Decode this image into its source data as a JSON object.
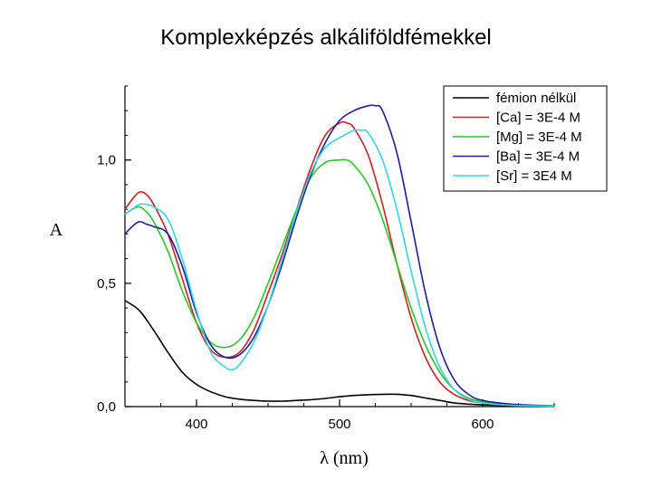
{
  "slide": {
    "title": "Komplexképzés alkáliföldfémekkel"
  },
  "chart_data": {
    "type": "line",
    "title": "",
    "xlabel": "λ (nm)",
    "ylabel": "A",
    "xlim": [
      350,
      650
    ],
    "ylim": [
      0,
      1.3
    ],
    "x_ticks": [
      400,
      500,
      600
    ],
    "x_tick_labels": [
      "400",
      "500",
      "600"
    ],
    "y_ticks": [
      0,
      0.5,
      1.0
    ],
    "y_tick_labels": [
      "0,0",
      "0,5",
      "1,0"
    ],
    "grid": false,
    "legend_position": "top-right",
    "series": [
      {
        "name": "fémion nélkül",
        "color": "#000000",
        "x": [
          350,
          360,
          370,
          380,
          390,
          400,
          410,
          420,
          430,
          440,
          450,
          460,
          470,
          480,
          490,
          500,
          510,
          520,
          530,
          540,
          550,
          560,
          570,
          580,
          590,
          600,
          620,
          650
        ],
        "y": [
          0.43,
          0.39,
          0.31,
          0.22,
          0.14,
          0.09,
          0.06,
          0.04,
          0.03,
          0.025,
          0.022,
          0.022,
          0.025,
          0.028,
          0.033,
          0.04,
          0.045,
          0.048,
          0.05,
          0.05,
          0.045,
          0.035,
          0.025,
          0.015,
          0.01,
          0.007,
          0.004,
          0.002
        ]
      },
      {
        "name": "[Ca] = 3E-4 M",
        "color": "#d42020",
        "x": [
          350,
          355,
          360,
          365,
          370,
          380,
          390,
          400,
          410,
          420,
          430,
          440,
          450,
          460,
          470,
          480,
          490,
          500,
          505,
          510,
          520,
          530,
          540,
          550,
          560,
          570,
          580,
          590,
          600,
          620,
          650
        ],
        "y": [
          0.8,
          0.84,
          0.87,
          0.86,
          0.82,
          0.7,
          0.52,
          0.34,
          0.23,
          0.2,
          0.22,
          0.31,
          0.46,
          0.62,
          0.8,
          0.97,
          1.1,
          1.15,
          1.15,
          1.13,
          1.02,
          0.82,
          0.58,
          0.36,
          0.2,
          0.1,
          0.05,
          0.025,
          0.015,
          0.006,
          0.002
        ]
      },
      {
        "name": "[Mg] = 3E-4 M",
        "color": "#22cc22",
        "x": [
          350,
          355,
          360,
          365,
          370,
          380,
          390,
          400,
          410,
          420,
          430,
          440,
          450,
          460,
          470,
          480,
          490,
          500,
          505,
          510,
          520,
          530,
          540,
          550,
          560,
          570,
          580,
          590,
          600,
          620,
          650
        ],
        "y": [
          0.78,
          0.8,
          0.81,
          0.79,
          0.75,
          0.63,
          0.47,
          0.34,
          0.26,
          0.24,
          0.27,
          0.36,
          0.5,
          0.65,
          0.8,
          0.93,
          0.99,
          1.0,
          1.0,
          0.98,
          0.9,
          0.76,
          0.58,
          0.4,
          0.25,
          0.14,
          0.07,
          0.035,
          0.02,
          0.008,
          0.003
        ]
      },
      {
        "name": "[Ba] = 3E-4 M",
        "color": "#1c1ca8",
        "x": [
          350,
          355,
          360,
          365,
          370,
          380,
          390,
          400,
          410,
          420,
          430,
          440,
          450,
          460,
          470,
          480,
          490,
          500,
          510,
          520,
          525,
          530,
          540,
          550,
          560,
          570,
          580,
          590,
          600,
          620,
          650
        ],
        "y": [
          0.7,
          0.73,
          0.75,
          0.74,
          0.73,
          0.7,
          0.57,
          0.38,
          0.25,
          0.2,
          0.21,
          0.28,
          0.41,
          0.58,
          0.77,
          0.94,
          1.07,
          1.16,
          1.2,
          1.22,
          1.22,
          1.2,
          1.03,
          0.75,
          0.46,
          0.24,
          0.11,
          0.05,
          0.025,
          0.01,
          0.003
        ]
      },
      {
        "name": "[Sr] = 3E4 M",
        "color": "#30d8e8",
        "x": [
          350,
          355,
          360,
          365,
          370,
          380,
          390,
          400,
          410,
          420,
          425,
          430,
          440,
          450,
          460,
          470,
          480,
          490,
          500,
          510,
          515,
          520,
          530,
          540,
          550,
          560,
          570,
          580,
          590,
          600,
          620,
          650
        ],
        "y": [
          0.78,
          0.8,
          0.82,
          0.82,
          0.81,
          0.76,
          0.6,
          0.39,
          0.22,
          0.16,
          0.15,
          0.17,
          0.26,
          0.41,
          0.6,
          0.79,
          0.95,
          1.05,
          1.09,
          1.12,
          1.12,
          1.11,
          1.0,
          0.8,
          0.55,
          0.32,
          0.16,
          0.07,
          0.03,
          0.015,
          0.005,
          0.002
        ]
      }
    ]
  }
}
